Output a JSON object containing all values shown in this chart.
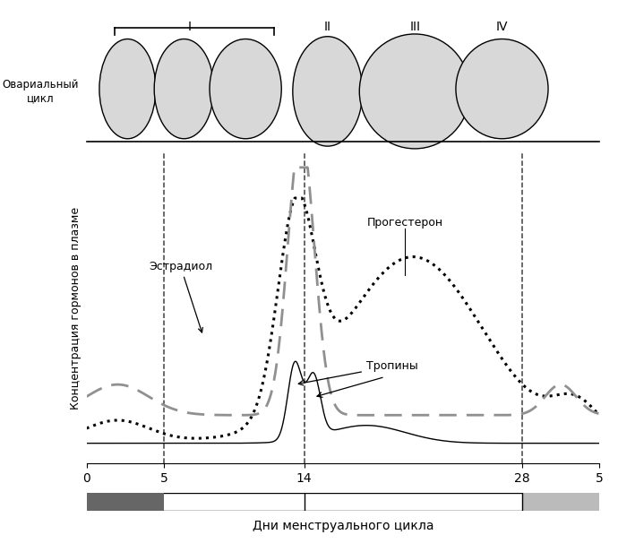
{
  "title_top": "Овариальный\nцикл",
  "ylabel": "Концентрация гормонов в плазме",
  "xlabel": "Дни менструального цикла",
  "dashed_vlines": [
    5,
    14,
    28
  ],
  "bar_dark_color": "#666666",
  "bar_light_color": "#bbbbbb",
  "xticklabels": [
    "0",
    "5",
    "14",
    "28",
    "5"
  ],
  "xtick_positions": [
    0,
    5,
    14,
    28,
    33
  ]
}
